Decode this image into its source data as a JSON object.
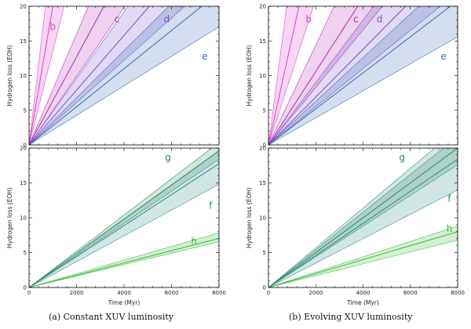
{
  "captions": {
    "a": "(a) Constant XUV luminosity",
    "b": "(b) Evolving XUV luminosity"
  },
  "chart_data": [
    {
      "type": "area",
      "title": "(a) Constant XUV luminosity - top",
      "xlabel": "",
      "ylabel": "Hydrogen loss (EOH)",
      "xlim": [
        0,
        8000
      ],
      "ylim": [
        0,
        20
      ],
      "xticks": [
        0,
        2000,
        4000,
        6000,
        8000
      ],
      "show_xticklabels": false,
      "yticks": [
        0,
        5,
        10,
        15,
        20
      ],
      "series": [
        {
          "name": "b",
          "color": "#e040c8",
          "label_at": [
            1000,
            16.6
          ],
          "lines": [
            {
              "mid": 20,
              "low": 13.5,
              "high": 29
            }
          ]
        },
        {
          "name": "c",
          "color": "#b030b0",
          "label_at": [
            3700,
            17.7
          ],
          "lines": [
            {
              "mid": 6.35,
              "low": 4.95,
              "high": 8.0
            }
          ]
        },
        {
          "name": "d",
          "color": "#7b52c8",
          "label_at": [
            5800,
            17.7
          ],
          "lines": [
            {
              "mid": 3.95,
              "low": 3.05,
              "high": 4.8
            }
          ]
        },
        {
          "name": "e",
          "color": "#3d6bb8",
          "label_at": [
            7400,
            12.3
          ],
          "lines": [
            {
              "mid": 2.75,
              "low": 2.13,
              "high": 3.4
            }
          ]
        }
      ]
    },
    {
      "type": "area",
      "title": "(a) Constant XUV luminosity - bottom",
      "xlabel": "Time (Myr)",
      "ylabel": "Hydrogen loss (EOH)",
      "xlim": [
        0,
        8000
      ],
      "ylim": [
        0,
        20
      ],
      "xticks": [
        0,
        2000,
        4000,
        6000,
        8000
      ],
      "show_xticklabels": true,
      "yticks": [
        0,
        5,
        10,
        15,
        20
      ],
      "series": [
        {
          "name": "g",
          "color": "#2e8b57",
          "label_at": [
            5850,
            18.2
          ],
          "lines": [
            {
              "mid": 2.45,
              "low": 2.3,
              "high": 2.6
            }
          ]
        },
        {
          "name": "f",
          "color": "#2f8a8a",
          "label_at": [
            7650,
            11.3
          ],
          "lines": [
            {
              "mid": 2.22,
              "low": 1.85,
              "high": 2.45
            }
          ]
        },
        {
          "name": "h",
          "color": "#3dbb3d",
          "label_at": [
            6950,
            6.2
          ],
          "lines": [
            {
              "mid": 0.88,
              "low": 0.82,
              "high": 0.98
            }
          ]
        }
      ]
    },
    {
      "type": "area",
      "title": "(b) Evolving XUV luminosity - top",
      "xlabel": "",
      "ylabel": "Hydrogen loss (EOH)",
      "xlim": [
        0,
        8000
      ],
      "ylim": [
        0,
        20
      ],
      "xticks": [
        0,
        2000,
        4000,
        6000,
        8000
      ],
      "show_xticklabels": false,
      "yticks": [
        0,
        5,
        10,
        15,
        20
      ],
      "series": [
        {
          "name": "b",
          "color": "#e040c8",
          "label_at": [
            1700,
            17.7
          ],
          "lines": [
            {
              "mid": 15.5,
              "low": 10.5,
              "high": 26
            }
          ]
        },
        {
          "name": "c",
          "color": "#b030b0",
          "label_at": [
            3700,
            17.7
          ],
          "lines": [
            {
              "mid": 5.3,
              "low": 4.15,
              "high": 7.2
            }
          ]
        },
        {
          "name": "d",
          "color": "#7b52c8",
          "label_at": [
            4700,
            17.7
          ],
          "lines": [
            {
              "mid": 3.45,
              "low": 2.75,
              "high": 4.5
            }
          ]
        },
        {
          "name": "e",
          "color": "#3d6bb8",
          "label_at": [
            7400,
            12.3
          ],
          "lines": [
            {
              "mid": 2.6,
              "low": 1.95,
              "high": 3.15
            }
          ]
        }
      ]
    },
    {
      "type": "area",
      "title": "(b) Evolving XUV luminosity - bottom",
      "xlabel": "Time (Myr)",
      "ylabel": "Hydrogen loss (EOH)",
      "xlim": [
        0,
        8000
      ],
      "ylim": [
        0,
        20
      ],
      "xticks": [
        0,
        2000,
        4000,
        6000,
        8000
      ],
      "show_xticklabels": true,
      "yticks": [
        0,
        5,
        10,
        15,
        20
      ],
      "series": [
        {
          "name": "g",
          "color": "#2e8b57",
          "label_at": [
            5650,
            18.2
          ],
          "lines": [
            {
              "mid": 2.5,
              "low": 2.2,
              "high": 2.7
            }
          ]
        },
        {
          "name": "f",
          "color": "#2f8a8a",
          "label_at": [
            7650,
            12.3
          ],
          "lines": [
            {
              "mid": 2.3,
              "low": 1.75,
              "high": 2.85
            }
          ]
        },
        {
          "name": "h",
          "color": "#3dbb3d",
          "label_at": [
            7650,
            8.0
          ],
          "lines": [
            {
              "mid": 1.0,
              "low": 0.85,
              "high": 1.1
            }
          ]
        }
      ]
    }
  ]
}
